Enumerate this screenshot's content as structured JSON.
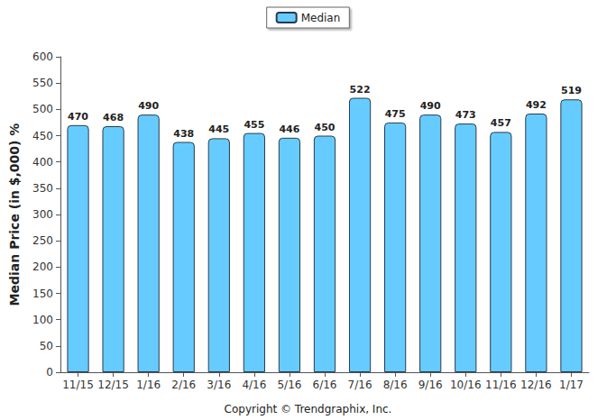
{
  "chart_data": {
    "type": "bar",
    "y_label": "Median Price (in $,000) %",
    "annotations": [
      "Copyright © Trendgraphix, Inc."
    ],
    "categories": [
      "11/15",
      "12/15",
      "1/16",
      "2/16",
      "3/16",
      "4/16",
      "5/16",
      "6/16",
      "7/16",
      "8/16",
      "9/16",
      "10/16",
      "11/16",
      "12/16",
      "1/17"
    ],
    "series": [
      {
        "name": "Median",
        "color": "#66ccff",
        "values": [
          470,
          468,
          490,
          438,
          445,
          455,
          446,
          450,
          522,
          475,
          490,
          473,
          457,
          492,
          519
        ]
      }
    ],
    "ylim": [
      0,
      600
    ],
    "yticks": [
      0,
      50,
      100,
      150,
      200,
      250,
      300,
      350,
      400,
      450,
      500,
      550,
      600
    ],
    "grid": false,
    "legend": "top",
    "data_labels": true
  }
}
